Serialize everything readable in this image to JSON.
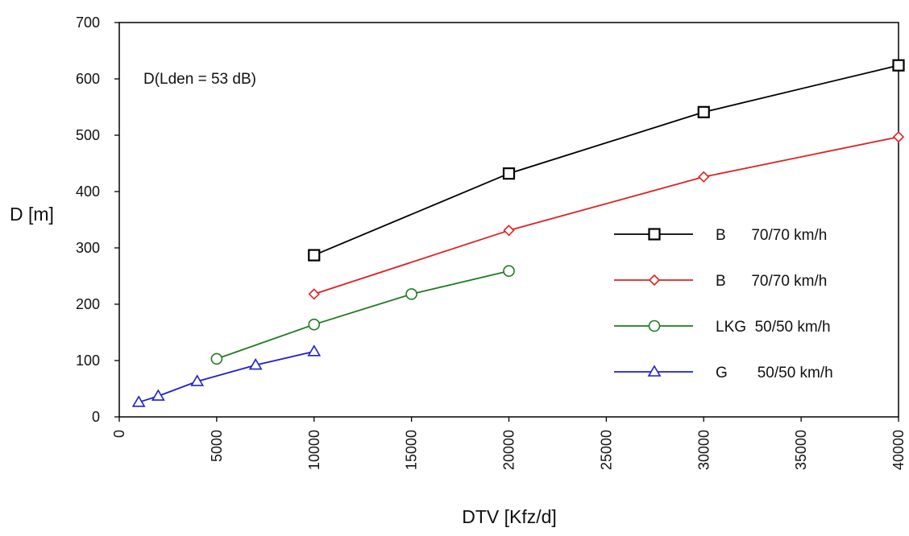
{
  "chart_data": {
    "type": "line",
    "annotation": "D(Lden = 53 dB)",
    "xlabel": "DTV [Kfz/d]",
    "ylabel": "D [m]",
    "xlim": [
      0,
      40000
    ],
    "ylim": [
      0,
      700
    ],
    "x_ticks": [
      "0",
      "5000",
      "10000",
      "15000",
      "20000",
      "25000",
      "30000",
      "35000",
      "40000"
    ],
    "y_ticks": [
      "0",
      "100",
      "200",
      "300",
      "400",
      "500",
      "600",
      "700"
    ],
    "grid": false,
    "legend_position": "right",
    "series": [
      {
        "name": "B      70/70 km/h",
        "color": "#000000",
        "marker": "square",
        "x": [
          10000,
          20000,
          30000,
          40000
        ],
        "y": [
          287,
          432,
          541,
          624
        ]
      },
      {
        "name": "B      70/70 km/h",
        "color": "#e02020",
        "marker": "diamond",
        "x": [
          10000,
          20000,
          30000,
          40000
        ],
        "y": [
          218,
          331,
          426,
          497
        ]
      },
      {
        "name": "LKG  50/50 km/h",
        "color": "#1f7a1f",
        "marker": "circle",
        "x": [
          5000,
          10000,
          15000,
          20000
        ],
        "y": [
          103,
          164,
          218,
          259
        ]
      },
      {
        "name": "G       50/50 km/h",
        "color": "#1f1fd0",
        "marker": "triangle",
        "x": [
          1000,
          2000,
          4000,
          7000,
          10000
        ],
        "y": [
          26,
          37,
          63,
          92,
          116
        ]
      }
    ]
  }
}
